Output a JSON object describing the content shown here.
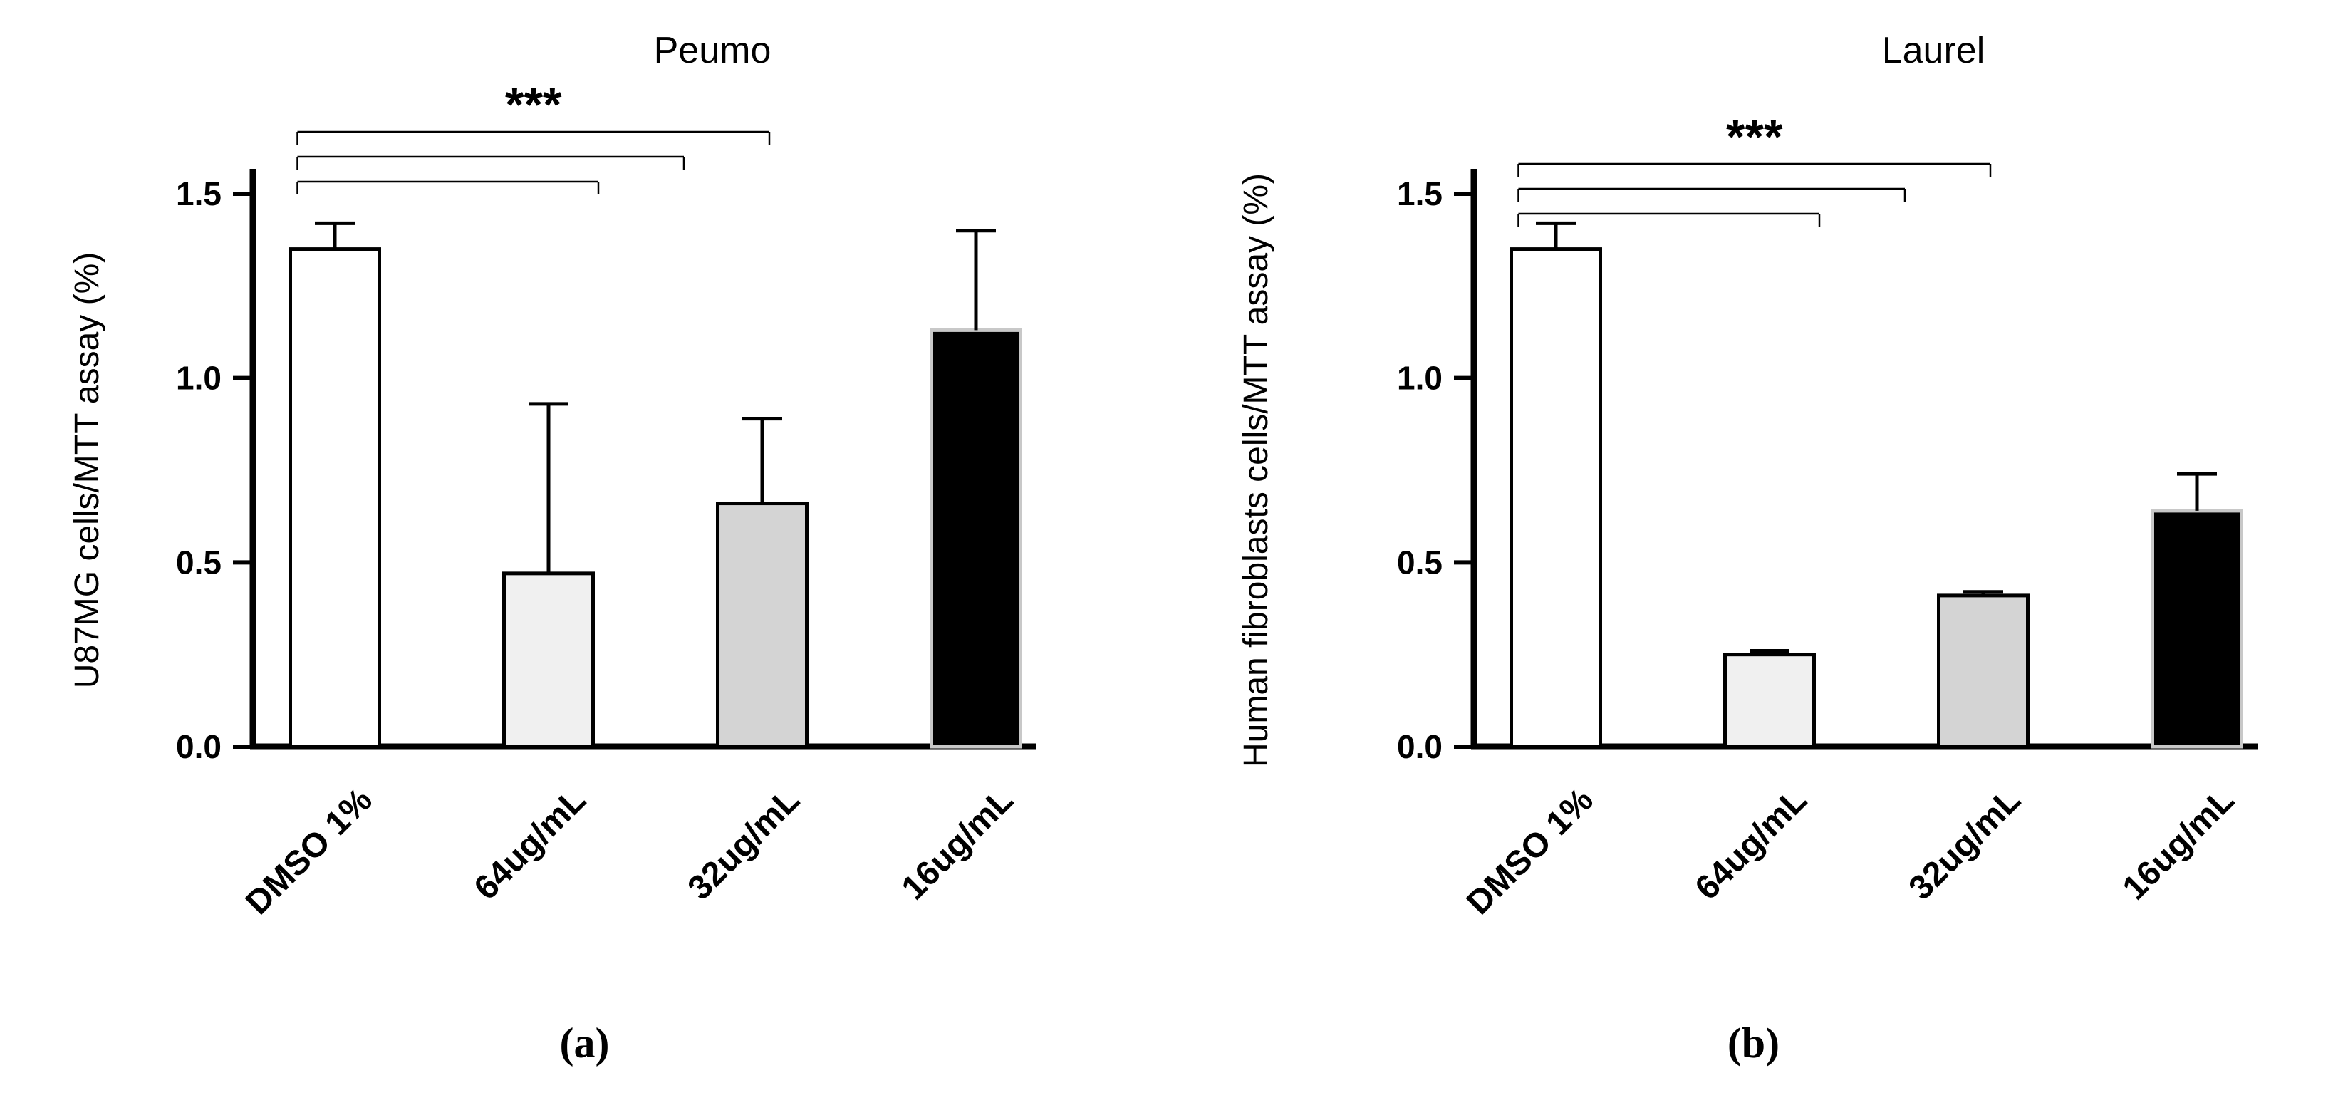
{
  "chart_data": [
    {
      "type": "bar",
      "title": "Peumo",
      "panel_label": "(a)",
      "xlabel": "",
      "ylabel": "U87MG cells/MTT assay (%)",
      "categories": [
        "DMSO 1%",
        "64ug/mL",
        "32ug/mL",
        "16ug/mL"
      ],
      "values": [
        1.35,
        0.47,
        0.66,
        1.13
      ],
      "errors": [
        0.07,
        0.46,
        0.23,
        0.27
      ],
      "bar_colors": [
        "#ffffff",
        "#f0f0f0",
        "#d4d4d4",
        "#000000"
      ],
      "bar_edge_colors": [
        "#000000",
        "#000000",
        "#000000",
        "#c8c8c8"
      ],
      "ylim": [
        0,
        1.5
      ],
      "yticks": [
        0,
        0.5,
        1,
        1.5
      ],
      "ytick_labels": [
        "0.0",
        "0.5",
        "1.0",
        "1.5"
      ],
      "grid": false,
      "legend": null,
      "significance": {
        "label": "***",
        "comparisons": [
          {
            "from": "DMSO 1%",
            "to": "64ug/mL"
          },
          {
            "from": "DMSO 1%",
            "to": "32ug/mL"
          },
          {
            "from": "DMSO 1%",
            "to": "16ug/mL"
          }
        ]
      }
    },
    {
      "type": "bar",
      "title": "Laurel",
      "panel_label": "(b)",
      "xlabel": "",
      "ylabel": "Human fibroblasts cells/MTT assay (%)",
      "categories": [
        "DMSO 1%",
        "64ug/mL",
        "32ug/mL",
        "16ug/mL"
      ],
      "values": [
        1.35,
        0.25,
        0.41,
        0.64
      ],
      "errors": [
        0.07,
        0.01,
        0.01,
        0.1
      ],
      "bar_colors": [
        "#ffffff",
        "#f0f0f0",
        "#d4d4d4",
        "#000000"
      ],
      "bar_edge_colors": [
        "#000000",
        "#000000",
        "#000000",
        "#c8c8c8"
      ],
      "ylim": [
        0,
        1.5
      ],
      "yticks": [
        0,
        0.5,
        1,
        1.5
      ],
      "ytick_labels": [
        "0.0",
        "0.5",
        "1.0",
        "1.5"
      ],
      "grid": false,
      "legend": null,
      "significance": {
        "label": "***",
        "comparisons": [
          {
            "from": "DMSO 1%",
            "to": "64ug/mL"
          },
          {
            "from": "DMSO 1%",
            "to": "32ug/mL"
          },
          {
            "from": "DMSO 1%",
            "to": "16ug/mL"
          }
        ]
      }
    }
  ]
}
